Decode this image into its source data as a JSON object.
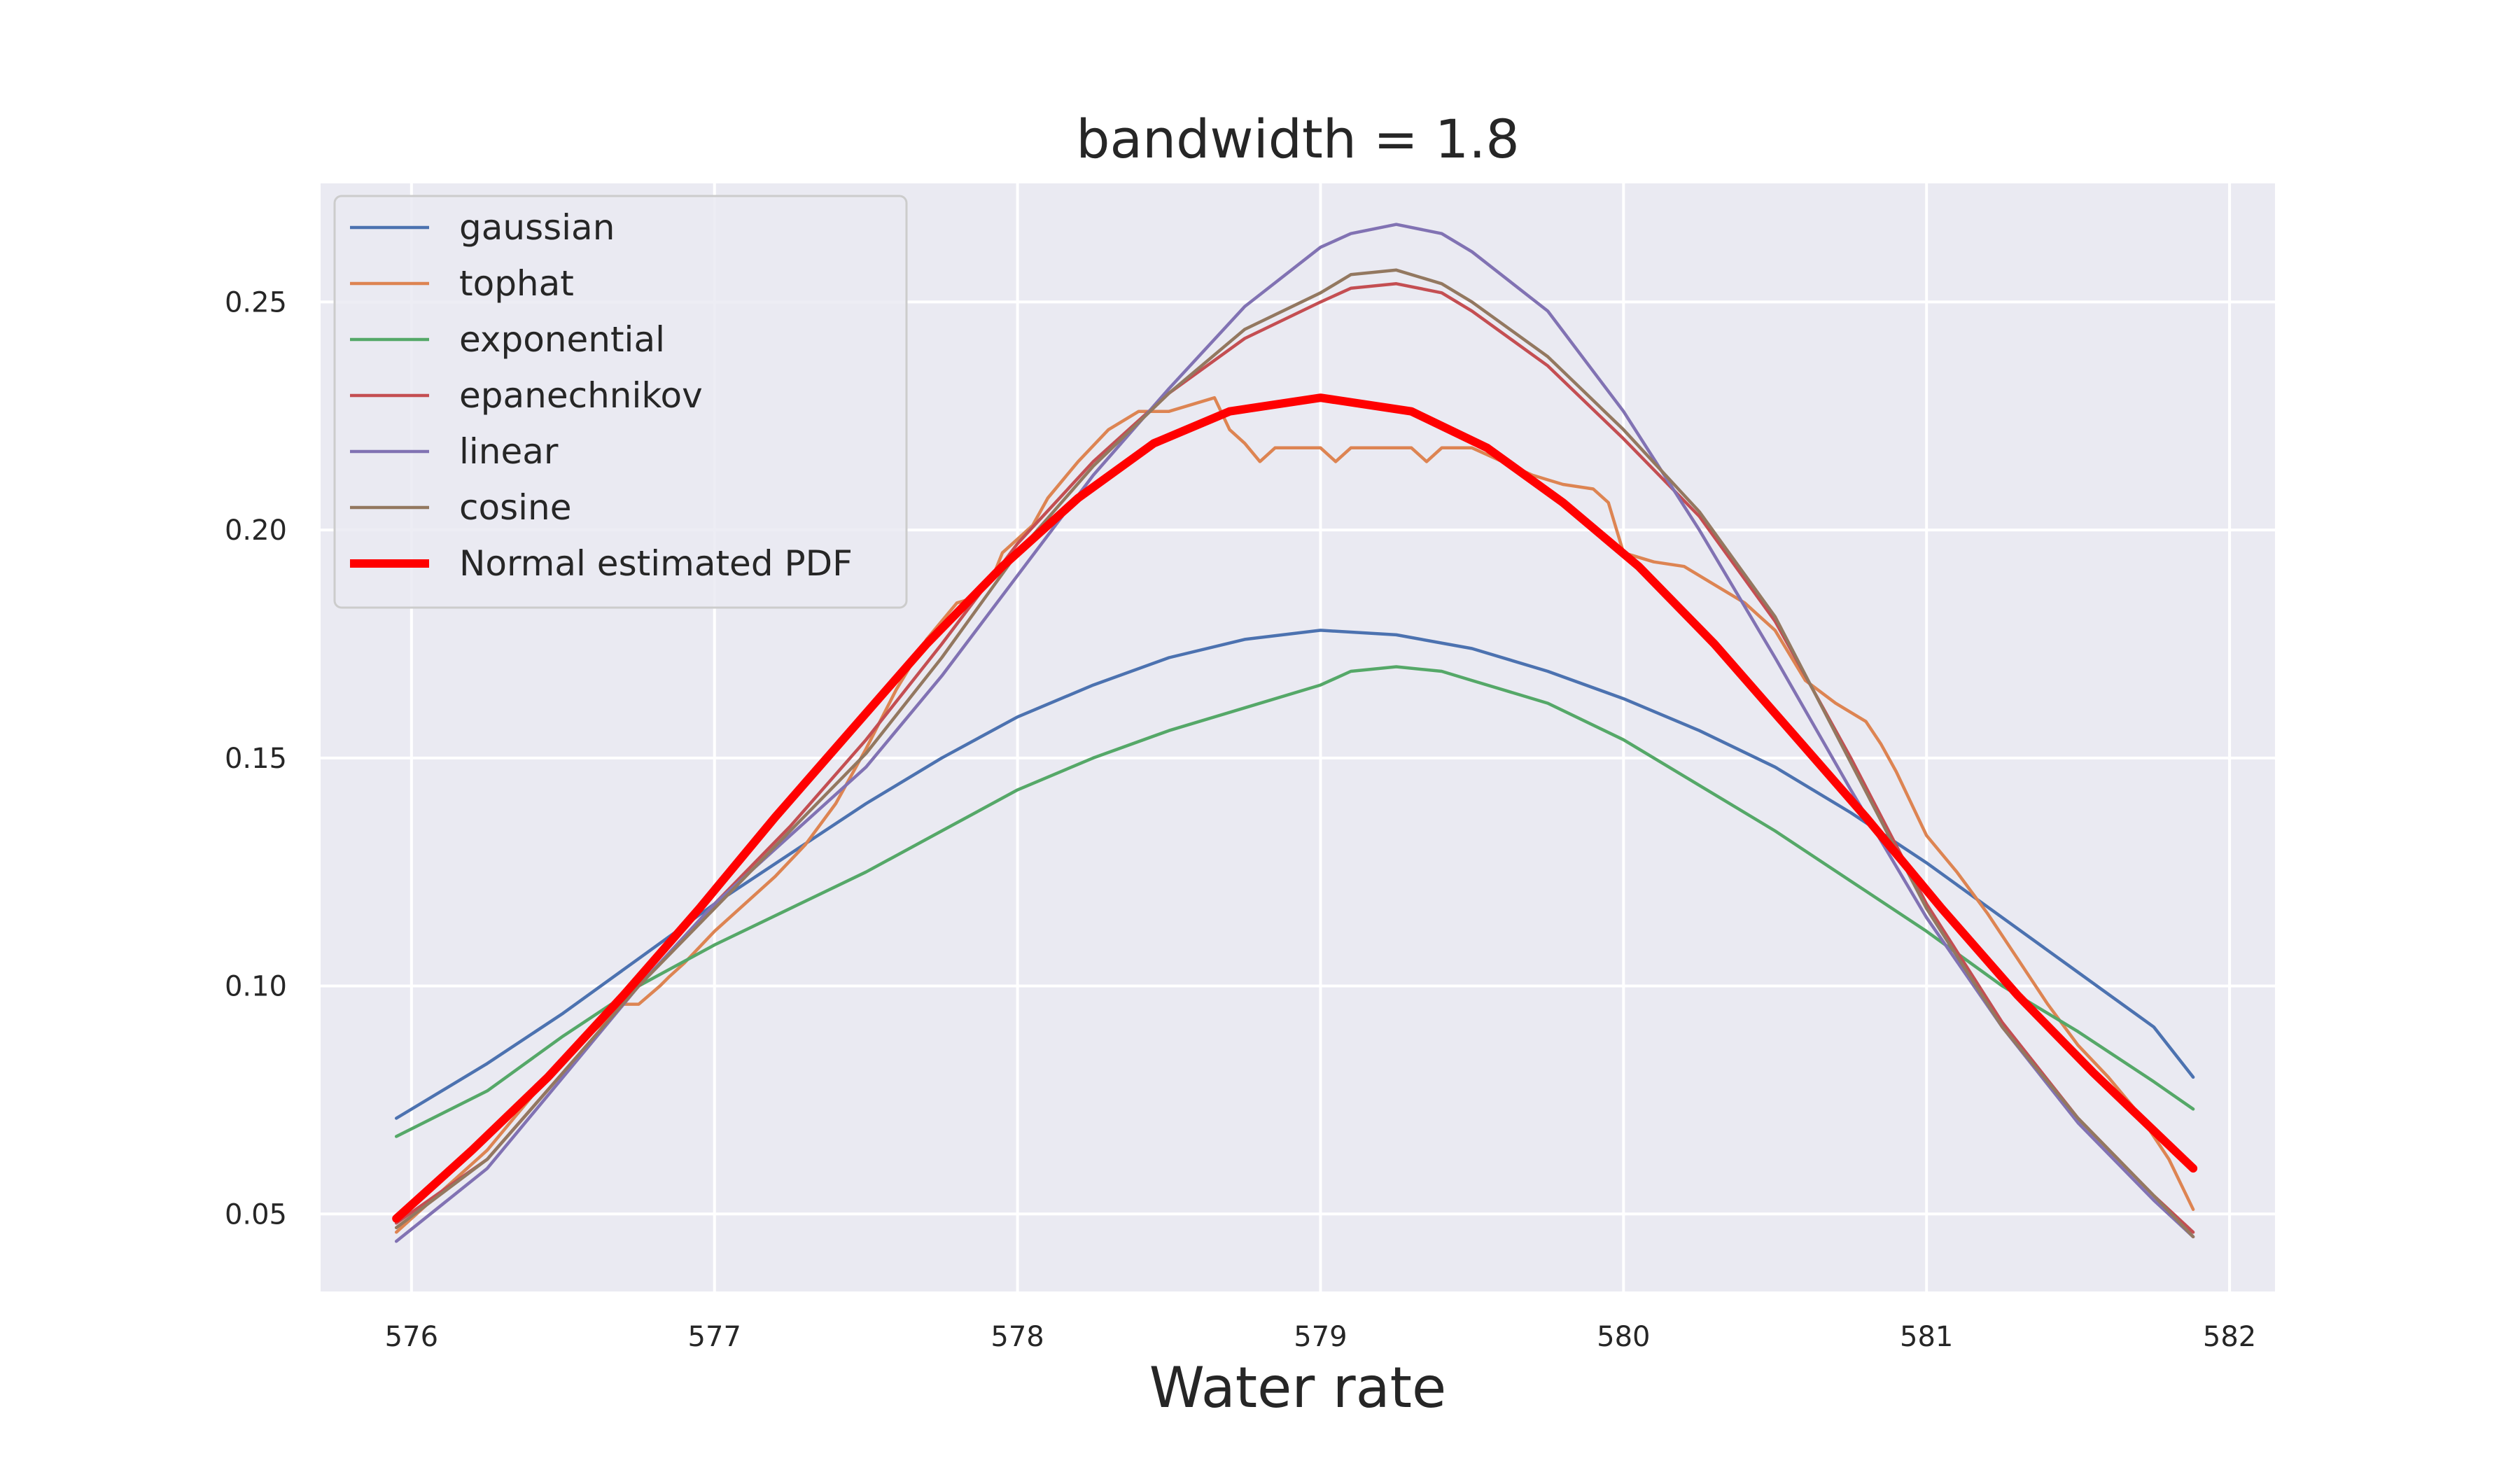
{
  "chart_data": {
    "type": "line",
    "title": "bandwidth = 1.8",
    "xlabel": "Water rate",
    "ylabel": "",
    "xlim": [
      575.7,
      582.15
    ],
    "ylim": [
      0.033,
      0.276
    ],
    "x_ticks": [
      576,
      577,
      578,
      579,
      580,
      581,
      582
    ],
    "y_ticks": [
      0.05,
      0.1,
      0.15,
      0.2,
      0.25
    ],
    "y_tick_labels": [
      "0.05",
      "0.10",
      "0.15",
      "0.20",
      "0.25"
    ],
    "grid": true,
    "legend_position": "upper-left",
    "background": "#eaeaf2",
    "series": [
      {
        "name": "gaussian",
        "color": "#4c72b0",
        "width": 4.5,
        "x": [
          575.95,
          576.25,
          576.5,
          576.75,
          577.0,
          577.25,
          577.5,
          577.75,
          578.0,
          578.25,
          578.5,
          578.75,
          579.0,
          579.25,
          579.5,
          579.75,
          580.0,
          580.25,
          580.5,
          580.75,
          581.0,
          581.25,
          581.5,
          581.75,
          581.88
        ],
        "y": [
          0.071,
          0.083,
          0.094,
          0.106,
          0.118,
          0.129,
          0.14,
          0.15,
          0.159,
          0.166,
          0.172,
          0.176,
          0.178,
          0.177,
          0.174,
          0.169,
          0.163,
          0.156,
          0.148,
          0.138,
          0.127,
          0.115,
          0.103,
          0.091,
          0.08
        ]
      },
      {
        "name": "tophat",
        "color": "#dd8452",
        "width": 4.5,
        "x": [
          575.95,
          576.1,
          576.25,
          576.4,
          576.55,
          576.7,
          576.75,
          576.82,
          576.85,
          576.9,
          577.0,
          577.1,
          577.2,
          577.3,
          577.4,
          577.5,
          577.6,
          577.7,
          577.8,
          577.85,
          577.92,
          577.95,
          578.05,
          578.1,
          578.2,
          578.3,
          578.4,
          578.5,
          578.6,
          578.65,
          578.7,
          578.75,
          578.8,
          578.85,
          578.9,
          579.0,
          579.05,
          579.1,
          579.2,
          579.3,
          579.35,
          579.4,
          579.5,
          579.6,
          579.7,
          579.8,
          579.9,
          579.95,
          580.0,
          580.1,
          580.2,
          580.3,
          580.4,
          580.45,
          580.5,
          580.6,
          580.7,
          580.8,
          580.85,
          580.9,
          581.0,
          581.1,
          581.2,
          581.3,
          581.4,
          581.5,
          581.6,
          581.7,
          581.8,
          581.88
        ],
        "y": [
          0.046,
          0.055,
          0.064,
          0.076,
          0.087,
          0.096,
          0.096,
          0.1,
          0.102,
          0.105,
          0.112,
          0.118,
          0.124,
          0.131,
          0.14,
          0.152,
          0.165,
          0.176,
          0.184,
          0.185,
          0.19,
          0.195,
          0.201,
          0.207,
          0.215,
          0.222,
          0.226,
          0.226,
          0.228,
          0.229,
          0.222,
          0.219,
          0.215,
          0.218,
          0.218,
          0.218,
          0.215,
          0.218,
          0.218,
          0.218,
          0.215,
          0.218,
          0.218,
          0.215,
          0.212,
          0.21,
          0.209,
          0.206,
          0.195,
          0.193,
          0.192,
          0.188,
          0.184,
          0.181,
          0.178,
          0.167,
          0.162,
          0.158,
          0.153,
          0.147,
          0.133,
          0.125,
          0.116,
          0.106,
          0.096,
          0.087,
          0.08,
          0.072,
          0.062,
          0.051
        ]
      },
      {
        "name": "exponential",
        "color": "#55a868",
        "width": 4.5,
        "x": [
          575.95,
          576.25,
          576.5,
          576.75,
          577.0,
          577.25,
          577.5,
          577.75,
          578.0,
          578.25,
          578.5,
          578.75,
          579.0,
          579.1,
          579.25,
          579.4,
          579.5,
          579.75,
          580.0,
          580.25,
          580.5,
          580.75,
          581.0,
          581.25,
          581.5,
          581.75,
          581.88
        ],
        "y": [
          0.067,
          0.077,
          0.089,
          0.1,
          0.109,
          0.117,
          0.125,
          0.134,
          0.143,
          0.15,
          0.156,
          0.161,
          0.166,
          0.169,
          0.17,
          0.169,
          0.167,
          0.162,
          0.154,
          0.144,
          0.134,
          0.123,
          0.112,
          0.1,
          0.09,
          0.079,
          0.073
        ]
      },
      {
        "name": "epanechnikov",
        "color": "#c44e52",
        "width": 4.5,
        "x": [
          575.95,
          576.25,
          576.5,
          576.75,
          577.0,
          577.25,
          577.5,
          577.75,
          578.0,
          578.25,
          578.5,
          578.75,
          579.0,
          579.1,
          579.25,
          579.4,
          579.5,
          579.75,
          580.0,
          580.25,
          580.5,
          580.75,
          581.0,
          581.25,
          581.5,
          581.75,
          581.88
        ],
        "y": [
          0.048,
          0.062,
          0.081,
          0.1,
          0.118,
          0.135,
          0.154,
          0.175,
          0.197,
          0.215,
          0.23,
          0.242,
          0.25,
          0.253,
          0.254,
          0.252,
          0.248,
          0.236,
          0.22,
          0.203,
          0.18,
          0.15,
          0.118,
          0.092,
          0.071,
          0.054,
          0.046
        ]
      },
      {
        "name": "linear",
        "color": "#8172b3",
        "width": 4.5,
        "x": [
          575.95,
          576.25,
          576.5,
          576.75,
          577.0,
          577.25,
          577.5,
          577.75,
          578.0,
          578.25,
          578.5,
          578.75,
          579.0,
          579.1,
          579.25,
          579.4,
          579.5,
          579.75,
          580.0,
          580.25,
          580.5,
          580.75,
          581.0,
          581.25,
          581.5,
          581.75,
          581.88
        ],
        "y": [
          0.044,
          0.06,
          0.08,
          0.1,
          0.118,
          0.133,
          0.148,
          0.168,
          0.19,
          0.212,
          0.231,
          0.249,
          0.262,
          0.265,
          0.267,
          0.265,
          0.261,
          0.248,
          0.226,
          0.2,
          0.172,
          0.143,
          0.115,
          0.091,
          0.07,
          0.053,
          0.045
        ]
      },
      {
        "name": "cosine",
        "color": "#937860",
        "width": 4.5,
        "x": [
          575.95,
          576.25,
          576.5,
          576.75,
          577.0,
          577.25,
          577.5,
          577.75,
          578.0,
          578.25,
          578.5,
          578.75,
          579.0,
          579.1,
          579.25,
          579.4,
          579.5,
          579.75,
          580.0,
          580.25,
          580.5,
          580.75,
          581.0,
          581.25,
          581.5,
          581.75,
          581.88
        ],
        "y": [
          0.047,
          0.062,
          0.081,
          0.1,
          0.117,
          0.134,
          0.151,
          0.172,
          0.195,
          0.214,
          0.23,
          0.244,
          0.252,
          0.256,
          0.257,
          0.254,
          0.25,
          0.238,
          0.222,
          0.204,
          0.181,
          0.149,
          0.117,
          0.091,
          0.071,
          0.054,
          0.045
        ]
      },
      {
        "name": "Normal estimated PDF",
        "color": "#ff0000",
        "width": 12,
        "x": [
          575.95,
          576.2,
          576.45,
          576.7,
          576.95,
          577.2,
          577.45,
          577.7,
          577.95,
          578.2,
          578.45,
          578.7,
          579.0,
          579.3,
          579.55,
          579.8,
          580.05,
          580.3,
          580.55,
          580.8,
          581.05,
          581.3,
          581.55,
          581.88
        ],
        "y": [
          0.049,
          0.064,
          0.08,
          0.098,
          0.117,
          0.137,
          0.156,
          0.175,
          0.192,
          0.207,
          0.219,
          0.226,
          0.229,
          0.226,
          0.218,
          0.206,
          0.192,
          0.175,
          0.156,
          0.137,
          0.117,
          0.098,
          0.081,
          0.06
        ]
      }
    ]
  }
}
